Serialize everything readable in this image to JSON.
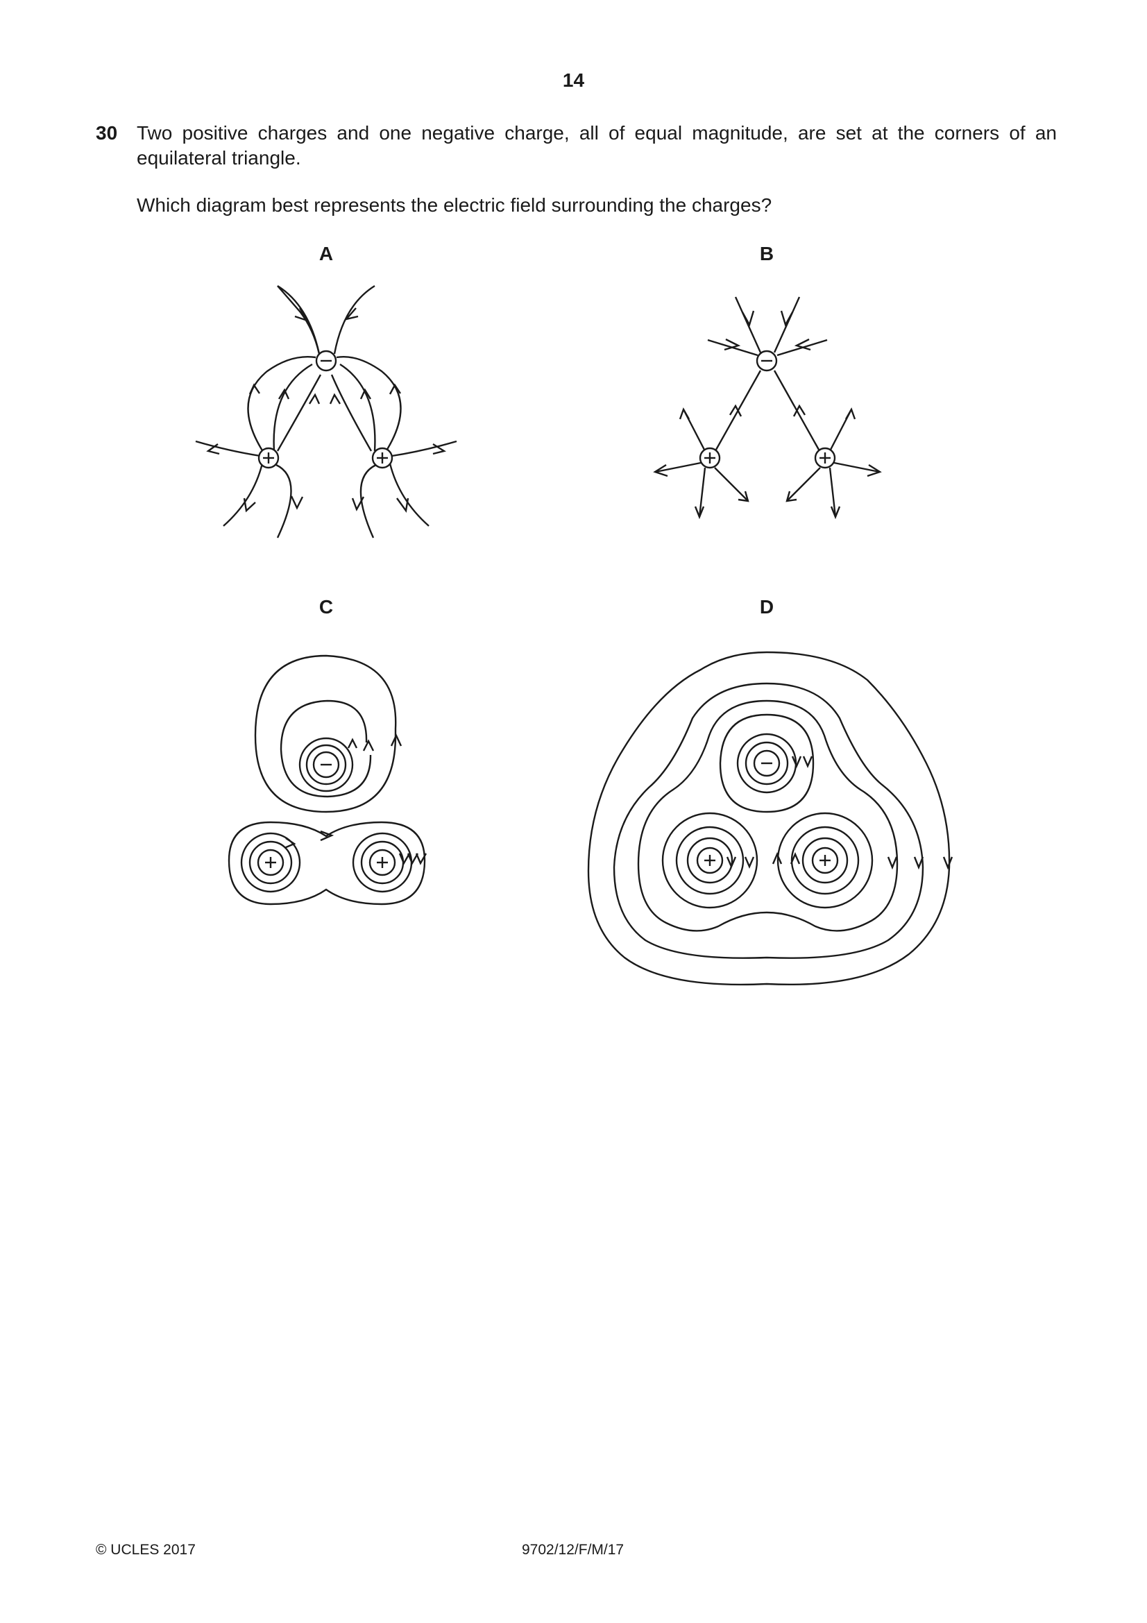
{
  "page_number": "14",
  "question": {
    "number": "30",
    "text": "Two positive charges and one negative charge, all of equal magnitude, are set at the corners of an equilateral triangle.",
    "prompt": "Which diagram best represents the electric field surrounding the charges?"
  },
  "options": [
    {
      "label": "A"
    },
    {
      "label": "B"
    },
    {
      "label": "C"
    },
    {
      "label": "D"
    }
  ],
  "charge_symbols": {
    "positive": "+",
    "negative": "−"
  },
  "footer": {
    "copyright": "© UCLES 2017",
    "code": "9702/12/F/M/17"
  }
}
